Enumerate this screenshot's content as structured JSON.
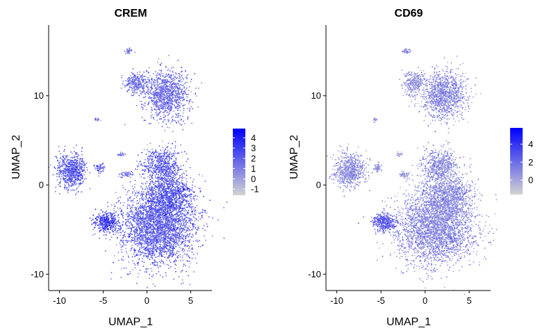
{
  "chart_data": [
    {
      "type": "scatter",
      "title": "CREM",
      "xlabel": "UMAP_1",
      "ylabel": "UMAP_2",
      "xlim": [
        -10.6,
        6.8
      ],
      "ylim": [
        -11.2,
        17.3
      ],
      "x_ticks": [
        -10,
        -5,
        0,
        5
      ],
      "y_ticks": [
        -10,
        0,
        10
      ],
      "grid": false,
      "legend_position": "right",
      "colorscale": {
        "low": "#d3d3d3",
        "high": "#0000ff",
        "min": -1.6,
        "max": 4.9
      },
      "legend_ticks": [
        -1,
        0,
        1,
        2,
        3,
        4
      ],
      "series": [
        {
          "name": "",
          "values": []
        }
      ]
    },
    {
      "type": "scatter",
      "title": "CD69",
      "xlabel": "UMAP_1",
      "ylabel": "UMAP_2",
      "xlim": [
        -10.6,
        6.8
      ],
      "ylim": [
        -11.2,
        17.3
      ],
      "x_ticks": [
        -10,
        -5,
        0,
        5
      ],
      "y_ticks": [
        -10,
        0,
        10
      ],
      "grid": false,
      "legend_position": "right",
      "colorscale": {
        "low": "#d3d3d3",
        "high": "#0000ff",
        "min": -1.6,
        "max": 5.8
      },
      "legend_ticks": [
        0,
        2,
        4
      ],
      "series": [
        {
          "name": "",
          "values": []
        }
      ]
    }
  ],
  "clusters": [
    {
      "cx": -8.6,
      "cy": 1.6,
      "sx": 1.1,
      "sy": 1.25,
      "n": 700,
      "crem": 2.4,
      "cd69": 1.0
    },
    {
      "cx": -5.4,
      "cy": 1.9,
      "sx": 0.35,
      "sy": 0.35,
      "n": 60,
      "crem": 2.4,
      "cd69": 1.0
    },
    {
      "cx": -4.6,
      "cy": -4.2,
      "sx": 0.9,
      "sy": 0.7,
      "n": 350,
      "crem": 3.6,
      "cd69": 3.2
    },
    {
      "cx": 1.2,
      "cy": -4.8,
      "sx": 2.9,
      "sy": 2.8,
      "n": 2900,
      "crem": 2.3,
      "cd69": 1.2
    },
    {
      "cx": 2.6,
      "cy": -1.2,
      "sx": 1.8,
      "sy": 1.6,
      "n": 900,
      "crem": 2.8,
      "cd69": 1.1
    },
    {
      "cx": 1.7,
      "cy": 2.2,
      "sx": 1.4,
      "sy": 1.3,
      "n": 600,
      "crem": 2.4,
      "cd69": 1.0
    },
    {
      "cx": -2.4,
      "cy": 1.2,
      "sx": 0.45,
      "sy": 0.25,
      "n": 50,
      "crem": 1.6,
      "cd69": 0.8
    },
    {
      "cx": -2.9,
      "cy": 3.4,
      "sx": 0.25,
      "sy": 0.15,
      "n": 25,
      "crem": 1.2,
      "cd69": 0.7
    },
    {
      "cx": 2.2,
      "cy": 10.1,
      "sx": 1.7,
      "sy": 1.8,
      "n": 1100,
      "crem": 1.8,
      "cd69": 1.1
    },
    {
      "cx": -1.2,
      "cy": 11.4,
      "sx": 0.9,
      "sy": 0.8,
      "n": 300,
      "crem": 1.6,
      "cd69": 1.0
    },
    {
      "cx": -2.1,
      "cy": 15.0,
      "sx": 0.3,
      "sy": 0.2,
      "n": 40,
      "crem": 1.4,
      "cd69": 1.0
    },
    {
      "cx": -5.7,
      "cy": 7.3,
      "sx": 0.2,
      "sy": 0.15,
      "n": 15,
      "crem": 1.4,
      "cd69": 1.0
    }
  ]
}
